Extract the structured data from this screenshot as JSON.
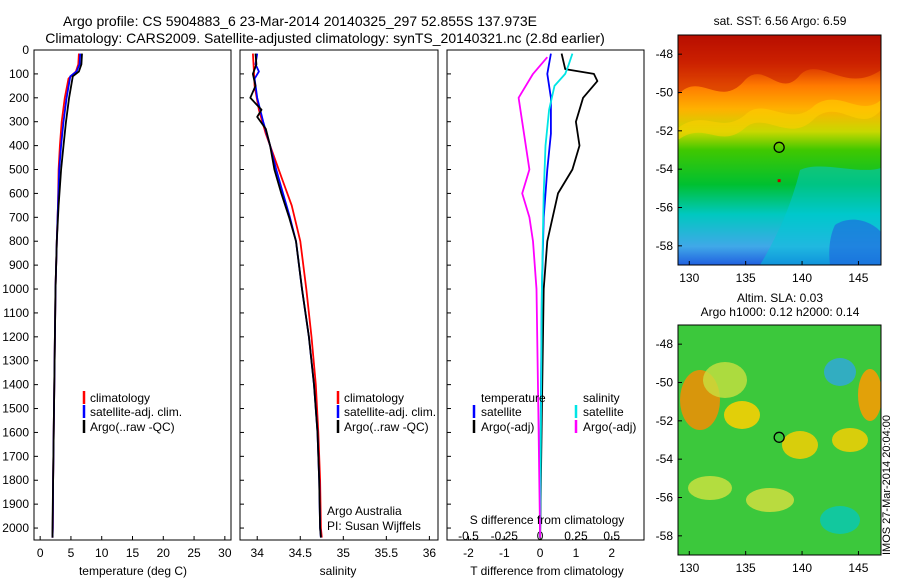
{
  "figure": {
    "title_line1": "Argo profile: CS 5904883_6 23-Mar-2014 20140325_297 52.855S 137.973E",
    "title_line2": "Climatology: CARS2009. Satellite-adjusted climatology: synTS_20140321.nc (2.8d earlier)",
    "side_stamp": "IMOS 27-Mar-2014 20:04:00",
    "credit_line1": "Argo Australia",
    "credit_line2": "PI: Susan Wijffels",
    "colors": {
      "climatology": "#ff0000",
      "satellite_adj": "#0000ff",
      "argo": "#000000",
      "salinity_sat": "#00e5e5",
      "salinity_argo": "#ff00ff",
      "marker": "#c00000"
    }
  },
  "chart_data": [
    {
      "id": "temperature-panel",
      "type": "line",
      "xlabel": "temperature (deg C)",
      "ylabel": "",
      "xlim": [
        -1,
        31
      ],
      "ylim": [
        2050,
        0
      ],
      "xticks": [
        0,
        5,
        10,
        15,
        20,
        25,
        30
      ],
      "yticks": [
        0,
        100,
        200,
        300,
        400,
        500,
        600,
        700,
        800,
        900,
        1000,
        1100,
        1200,
        1300,
        1400,
        1500,
        1600,
        1700,
        1800,
        1900,
        2000
      ],
      "legend": [
        "climatology",
        "satellite-adj. clim.",
        "Argo(..raw -QC)"
      ],
      "legend_placement": "bottom-center",
      "series": [
        {
          "name": "climatology",
          "color": "#ff0000",
          "points": [
            [
              6.3,
              15
            ],
            [
              6.2,
              60
            ],
            [
              5.8,
              90
            ],
            [
              4.6,
              120
            ],
            [
              4.0,
              200
            ],
            [
              3.5,
              300
            ],
            [
              3.2,
              400
            ],
            [
              3.0,
              500
            ],
            [
              2.9,
              650
            ],
            [
              2.7,
              800
            ],
            [
              2.5,
              1000
            ],
            [
              2.4,
              1200
            ],
            [
              2.3,
              1400
            ],
            [
              2.2,
              1600
            ],
            [
              2.1,
              1800
            ],
            [
              2.05,
              2000
            ],
            [
              2.0,
              2040
            ]
          ]
        },
        {
          "name": "satellite-adj. clim.",
          "color": "#0000ff",
          "points": [
            [
              6.5,
              15
            ],
            [
              6.4,
              60
            ],
            [
              5.9,
              90
            ],
            [
              4.9,
              110
            ],
            [
              4.3,
              200
            ],
            [
              3.8,
              300
            ],
            [
              3.4,
              400
            ],
            [
              3.1,
              500
            ],
            [
              2.9,
              650
            ],
            [
              2.7,
              800
            ],
            [
              2.5,
              1000
            ],
            [
              2.4,
              1200
            ],
            [
              2.3,
              1400
            ],
            [
              2.2,
              1600
            ],
            [
              2.1,
              1800
            ],
            [
              2.05,
              2000
            ],
            [
              2.0,
              2040
            ]
          ]
        },
        {
          "name": "Argo(..raw -QC)",
          "color": "#000000",
          "points": [
            [
              6.8,
              15
            ],
            [
              6.7,
              60
            ],
            [
              6.3,
              90
            ],
            [
              5.3,
              110
            ],
            [
              4.7,
              200
            ],
            [
              4.2,
              300
            ],
            [
              3.8,
              400
            ],
            [
              3.4,
              500
            ],
            [
              3.0,
              650
            ],
            [
              2.7,
              800
            ],
            [
              2.5,
              1000
            ],
            [
              2.4,
              1200
            ],
            [
              2.3,
              1400
            ],
            [
              2.2,
              1600
            ],
            [
              2.1,
              1800
            ],
            [
              2.0,
              2000
            ],
            [
              2.0,
              2040
            ]
          ]
        }
      ]
    },
    {
      "id": "salinity-panel",
      "type": "line",
      "xlabel": "salinity",
      "ylabel": "",
      "xlim": [
        33.8,
        36.1
      ],
      "ylim": [
        2050,
        0
      ],
      "xticks": [
        34,
        34.5,
        35,
        35.5,
        36
      ],
      "legend": [
        "climatology",
        "satellite-adj. clim.",
        "Argo(..raw -QC)"
      ],
      "legend_placement": "bottom-center",
      "series": [
        {
          "name": "climatology",
          "color": "#ff0000",
          "points": [
            [
              33.95,
              15
            ],
            [
              33.96,
              80
            ],
            [
              33.97,
              150
            ],
            [
              34.02,
              250
            ],
            [
              34.1,
              350
            ],
            [
              34.2,
              450
            ],
            [
              34.3,
              550
            ],
            [
              34.4,
              650
            ],
            [
              34.5,
              800
            ],
            [
              34.57,
              1000
            ],
            [
              34.63,
              1200
            ],
            [
              34.68,
              1400
            ],
            [
              34.71,
              1600
            ],
            [
              34.73,
              1800
            ],
            [
              34.74,
              2000
            ],
            [
              34.75,
              2040
            ]
          ]
        },
        {
          "name": "satellite-adj. clim.",
          "color": "#0000ff",
          "points": [
            [
              34.0,
              15
            ],
            [
              33.98,
              60
            ],
            [
              34.02,
              90
            ],
            [
              33.97,
              120
            ],
            [
              34.0,
              200
            ],
            [
              34.07,
              300
            ],
            [
              34.15,
              400
            ],
            [
              34.22,
              500
            ],
            [
              34.3,
              600
            ],
            [
              34.38,
              700
            ],
            [
              34.45,
              800
            ],
            [
              34.52,
              1000
            ],
            [
              34.6,
              1200
            ],
            [
              34.66,
              1400
            ],
            [
              34.7,
              1600
            ],
            [
              34.72,
              1800
            ],
            [
              34.73,
              2000
            ],
            [
              34.74,
              2040
            ]
          ]
        },
        {
          "name": "Argo(..raw -QC)",
          "color": "#000000",
          "points": [
            [
              33.98,
              15
            ],
            [
              33.99,
              60
            ],
            [
              33.95,
              100
            ],
            [
              33.98,
              150
            ],
            [
              33.92,
              200
            ],
            [
              34.05,
              250
            ],
            [
              34.0,
              280
            ],
            [
              34.1,
              330
            ],
            [
              34.15,
              400
            ],
            [
              34.2,
              500
            ],
            [
              34.28,
              600
            ],
            [
              34.37,
              700
            ],
            [
              34.45,
              800
            ],
            [
              34.52,
              1000
            ],
            [
              34.6,
              1200
            ],
            [
              34.66,
              1400
            ],
            [
              34.7,
              1600
            ],
            [
              34.72,
              1800
            ],
            [
              34.73,
              2000
            ],
            [
              34.74,
              2040
            ]
          ]
        }
      ]
    },
    {
      "id": "difference-panel",
      "type": "line",
      "xlabel": "T difference from climatology",
      "top_xlabel": "S difference from climatology",
      "xlim": [
        -2.6,
        2.9
      ],
      "ylim": [
        2050,
        0
      ],
      "xticks": [
        -2,
        -1,
        0,
        1,
        2
      ],
      "sticks": [
        [
          "-0.5",
          -2.0
        ],
        [
          "-0.25",
          -1.0
        ],
        [
          "0",
          0
        ],
        [
          "0.25",
          1.0
        ],
        [
          "0.5",
          2.0
        ]
      ],
      "legend_left_title": "temperature",
      "legend_right_title": "salinity",
      "legend_left": [
        "satellite",
        "Argo(-adj)"
      ],
      "legend_right": [
        "satellite",
        "Argo(-adj)"
      ],
      "legend_placement": "bottom-center",
      "series": [
        {
          "name": "temperature satellite",
          "color": "#0000ff",
          "points": [
            [
              0.3,
              15
            ],
            [
              0.2,
              100
            ],
            [
              0.3,
              200
            ],
            [
              0.3,
              350
            ],
            [
              0.2,
              500
            ],
            [
              0.1,
              700
            ],
            [
              0.05,
              1000
            ],
            [
              0.02,
              1500
            ],
            [
              0.0,
              2040
            ]
          ]
        },
        {
          "name": "temperature Argo(-adj)",
          "color": "#000000",
          "points": [
            [
              0.6,
              15
            ],
            [
              0.7,
              80
            ],
            [
              1.5,
              100
            ],
            [
              1.6,
              130
            ],
            [
              1.2,
              200
            ],
            [
              1.0,
              300
            ],
            [
              1.1,
              400
            ],
            [
              0.9,
              500
            ],
            [
              0.5,
              600
            ],
            [
              0.2,
              800
            ],
            [
              0.1,
              1000
            ],
            [
              0.05,
              1500
            ],
            [
              0.0,
              2040
            ]
          ]
        },
        {
          "name": "salinity satellite",
          "color": "#00e5e5",
          "points": [
            [
              0.9,
              15
            ],
            [
              0.8,
              60
            ],
            [
              0.7,
              100
            ],
            [
              0.4,
              150
            ],
            [
              0.25,
              250
            ],
            [
              0.15,
              400
            ],
            [
              0.1,
              600
            ],
            [
              0.05,
              1000
            ],
            [
              0.0,
              2040
            ]
          ]
        },
        {
          "name": "salinity Argo(-adj)",
          "color": "#ff00ff",
          "points": [
            [
              0.2,
              30
            ],
            [
              -0.2,
              100
            ],
            [
              -0.6,
              200
            ],
            [
              -0.5,
              300
            ],
            [
              -0.4,
              400
            ],
            [
              -0.3,
              500
            ],
            [
              -0.5,
              600
            ],
            [
              -0.3,
              700
            ],
            [
              -0.2,
              800
            ],
            [
              -0.1,
              1000
            ],
            [
              -0.05,
              1500
            ],
            [
              0.0,
              2040
            ]
          ]
        }
      ]
    },
    {
      "id": "sst-map",
      "type": "heatmap",
      "title": "sat. SST: 6.56 Argo: 6.59",
      "xlim": [
        129,
        147
      ],
      "ylim": [
        -59,
        -47
      ],
      "xticks": [
        130,
        135,
        140,
        145
      ],
      "yticks": [
        -48,
        -50,
        -52,
        -54,
        -56,
        -58
      ],
      "marker": [
        137.97,
        -52.86
      ],
      "secondary_marker": [
        137.97,
        -54.6
      ]
    },
    {
      "id": "sla-map",
      "type": "heatmap",
      "title_line1": "Altim. SLA: 0.03",
      "title_line2": "Argo h1000: 0.12 h2000: 0.14",
      "xlim": [
        129,
        147
      ],
      "ylim": [
        -59,
        -47
      ],
      "xticks": [
        130,
        135,
        140,
        145
      ],
      "yticks": [
        -48,
        -50,
        -52,
        -54,
        -56,
        -58
      ],
      "marker": [
        137.97,
        -52.86
      ]
    }
  ]
}
